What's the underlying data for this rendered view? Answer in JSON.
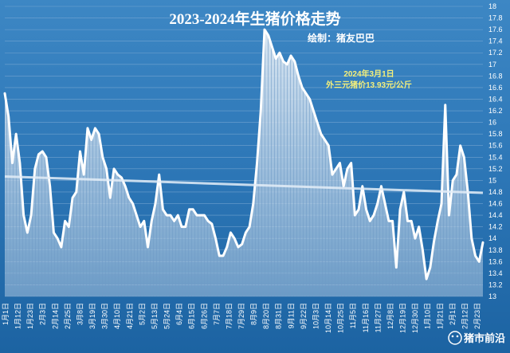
{
  "chart_data": {
    "type": "area",
    "title": "2023-2024年生猪价格走势",
    "subtitle": "绘制：猪友巴巴",
    "annotation_line1": "2024年3月1日",
    "annotation_line2": "外三元猪价13.93元/公斤",
    "watermark": "猪市前沿",
    "ylim": [
      13,
      18
    ],
    "y_ticks": [
      "13",
      "13.2",
      "13.4",
      "13.6",
      "13.8",
      "14",
      "14.2",
      "14.4",
      "14.6",
      "14.8",
      "15",
      "15.2",
      "15.4",
      "15.6",
      "15.8",
      "16",
      "16.2",
      "16.4",
      "16.6",
      "16.8",
      "17",
      "17.2",
      "17.4",
      "17.6",
      "17.8",
      "18"
    ],
    "x_ticks": [
      "1月1日",
      "1月12日",
      "1月23日",
      "2月3日",
      "2月14日",
      "2月25日",
      "3月8日",
      "3月19日",
      "3月30日",
      "4月10日",
      "4月21日",
      "5月2日",
      "5月13日",
      "5月24日",
      "6月4日",
      "6月15日",
      "6月26日",
      "7月7日",
      "7月18日",
      "7月29日",
      "8月9日",
      "8月20日",
      "8月31日",
      "9月11日",
      "9月22日",
      "10月3日",
      "10月14日",
      "10月25日",
      "11月5日",
      "11月16日",
      "11月27日",
      "12月8日",
      "12月19日",
      "12月30日",
      "1月10日",
      "1月21日",
      "2月1日",
      "2月12日",
      "2月23日"
    ],
    "grid": true,
    "series": [
      {
        "values": [
          16.5,
          16.1,
          15.3,
          15.8,
          15.3,
          14.4,
          14.1,
          14.4,
          15.2,
          15.45,
          15.5,
          15.4,
          14.9,
          14.1,
          14.0,
          13.85,
          14.3,
          14.2,
          14.7,
          14.8,
          15.5,
          15.1,
          15.9,
          15.7,
          15.9,
          15.8,
          15.4,
          15.2,
          14.7,
          15.2,
          15.1,
          15.05,
          14.9,
          14.7,
          14.6,
          14.4,
          14.2,
          14.3,
          13.85,
          14.3,
          14.6,
          15.1,
          14.5,
          14.4,
          14.4,
          14.3,
          14.4,
          14.2,
          14.2,
          14.5,
          14.5,
          14.4,
          14.4,
          14.4,
          14.3,
          14.25,
          14.0,
          13.7,
          13.7,
          13.85,
          14.1,
          14.0,
          13.85,
          13.9,
          14.1,
          14.2,
          14.6,
          15.3,
          16.2,
          17.6,
          17.5,
          17.3,
          17.1,
          17.2,
          17.05,
          17.0,
          17.15,
          17.05,
          16.8,
          16.6,
          16.5,
          16.4,
          16.2,
          16.0,
          15.8,
          15.7,
          15.6,
          15.1,
          15.2,
          15.3,
          14.9,
          15.2,
          15.3,
          14.4,
          14.5,
          14.9,
          14.5,
          14.3,
          14.4,
          14.6,
          14.9,
          14.6,
          14.3,
          14.3,
          13.5,
          14.5,
          14.8,
          14.3,
          14.3,
          14.0,
          14.2,
          13.8,
          13.3,
          13.5,
          13.95,
          14.3,
          14.6,
          16.3,
          14.4,
          15.0,
          15.1,
          15.6,
          15.4,
          14.8,
          14.0,
          13.7,
          13.6,
          13.93
        ]
      }
    ]
  }
}
